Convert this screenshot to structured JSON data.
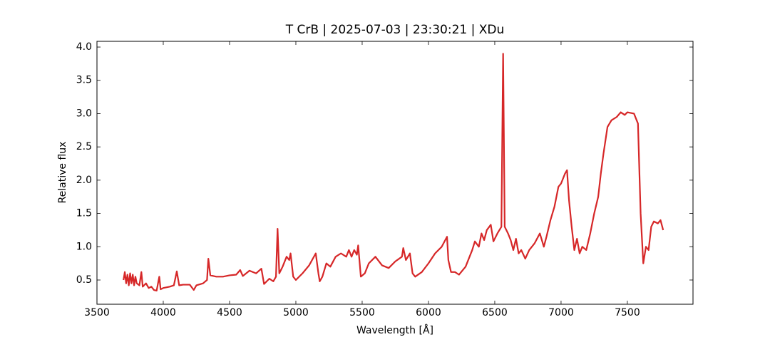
{
  "chart_data": {
    "type": "line",
    "title": "T CrB | 2025-07-03 | 23:30:21 | XDu",
    "x_label": "Wavelength [Å]",
    "y_label": "Relative flux",
    "x": [
      3700,
      3710,
      3720,
      3730,
      3740,
      3750,
      3760,
      3770,
      3780,
      3790,
      3800,
      3820,
      3835,
      3845,
      3870,
      3890,
      3910,
      3930,
      3950,
      3970,
      3980,
      4000,
      4050,
      4080,
      4102,
      4120,
      4150,
      4200,
      4230,
      4250,
      4300,
      4330,
      4340,
      4355,
      4400,
      4450,
      4500,
      4550,
      4580,
      4600,
      4650,
      4700,
      4740,
      4760,
      4800,
      4830,
      4850,
      4862,
      4875,
      4900,
      4930,
      4950,
      4960,
      4980,
      5000,
      5050,
      5100,
      5150,
      5170,
      5180,
      5200,
      5230,
      5260,
      5300,
      5340,
      5380,
      5400,
      5420,
      5440,
      5460,
      5470,
      5490,
      5520,
      5550,
      5600,
      5650,
      5700,
      5750,
      5800,
      5810,
      5830,
      5860,
      5880,
      5900,
      5950,
      6000,
      6050,
      6100,
      6140,
      6150,
      6170,
      6200,
      6230,
      6280,
      6330,
      6350,
      6380,
      6400,
      6420,
      6440,
      6470,
      6490,
      6520,
      6550,
      6563,
      6575,
      6600,
      6620,
      6640,
      6660,
      6680,
      6700,
      6730,
      6760,
      6800,
      6840,
      6870,
      6890,
      6920,
      6950,
      6980,
      7000,
      7030,
      7045,
      7060,
      7080,
      7100,
      7120,
      7140,
      7160,
      7190,
      7220,
      7250,
      7280,
      7300,
      7320,
      7350,
      7380,
      7420,
      7450,
      7480,
      7500,
      7550,
      7580,
      7600,
      7620,
      7640,
      7660,
      7680,
      7700,
      7730,
      7750,
      7770
    ],
    "series": [
      {
        "name": "T CrB",
        "color": "#d62728",
        "values": [
          0.5,
          0.62,
          0.45,
          0.58,
          0.42,
          0.6,
          0.45,
          0.58,
          0.42,
          0.55,
          0.45,
          0.42,
          0.62,
          0.4,
          0.45,
          0.38,
          0.4,
          0.35,
          0.34,
          0.55,
          0.36,
          0.38,
          0.4,
          0.42,
          0.63,
          0.42,
          0.43,
          0.43,
          0.35,
          0.42,
          0.45,
          0.5,
          0.82,
          0.57,
          0.55,
          0.55,
          0.57,
          0.58,
          0.65,
          0.56,
          0.64,
          0.6,
          0.67,
          0.44,
          0.52,
          0.48,
          0.55,
          1.27,
          0.6,
          0.7,
          0.85,
          0.8,
          0.9,
          0.55,
          0.5,
          0.6,
          0.72,
          0.9,
          0.6,
          0.48,
          0.55,
          0.75,
          0.7,
          0.85,
          0.9,
          0.85,
          0.95,
          0.85,
          0.95,
          0.88,
          1.02,
          0.55,
          0.6,
          0.75,
          0.85,
          0.72,
          0.68,
          0.78,
          0.85,
          0.98,
          0.8,
          0.9,
          0.6,
          0.55,
          0.62,
          0.75,
          0.9,
          1.0,
          1.15,
          0.8,
          0.62,
          0.62,
          0.58,
          0.7,
          0.95,
          1.08,
          1.0,
          1.2,
          1.1,
          1.25,
          1.33,
          1.08,
          1.2,
          1.3,
          3.9,
          1.3,
          1.2,
          1.1,
          0.95,
          1.12,
          0.9,
          0.95,
          0.82,
          0.95,
          1.05,
          1.2,
          1.0,
          1.15,
          1.4,
          1.6,
          1.9,
          1.95,
          2.1,
          2.15,
          1.7,
          1.3,
          0.95,
          1.12,
          0.9,
          1.0,
          0.95,
          1.2,
          1.5,
          1.75,
          2.1,
          2.4,
          2.8,
          2.9,
          2.95,
          3.02,
          2.98,
          3.02,
          3.0,
          2.85,
          1.5,
          0.75,
          1.0,
          0.95,
          1.3,
          1.38,
          1.35,
          1.4,
          1.25
        ]
      }
    ],
    "xlim": [
      3500,
      7995
    ],
    "ylim": [
      0.136,
      4.086
    ],
    "xticks": [
      3500,
      4000,
      4500,
      5000,
      5500,
      6000,
      6500,
      7000,
      7500
    ],
    "yticks": [
      0.5,
      {
        "value": 1,
        "label": "1.0"
      },
      1.5,
      {
        "value": 2,
        "label": "2.0"
      },
      2.5,
      {
        "value": 3,
        "label": "3.0"
      },
      3.5,
      {
        "value": 4,
        "label": "4.0"
      }
    ],
    "grid": false
  }
}
